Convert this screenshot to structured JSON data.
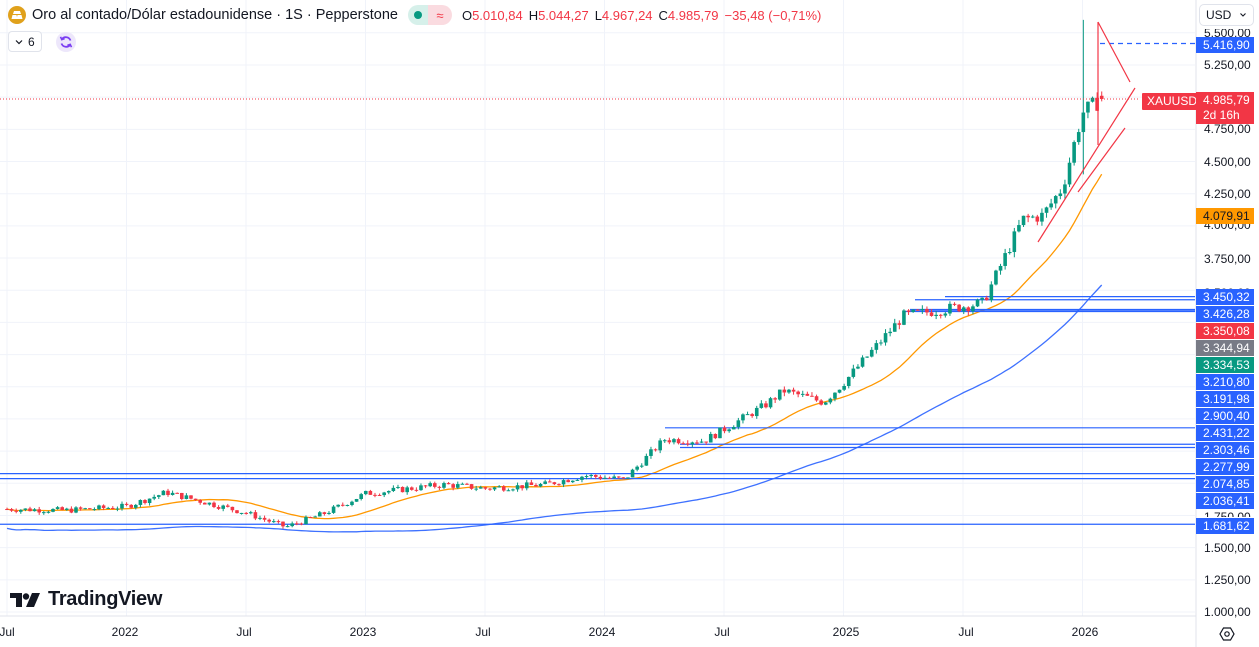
{
  "header": {
    "symbol_icon": "gold-bar-icon",
    "title": "Oro al contado/Dólar estadounidense · 1S · Pepperstone",
    "market_status_icon": "market-open-dot-icon",
    "delay_icon": "approx-icon",
    "ohlc": {
      "o_label": "O",
      "o_value": "5.010,84",
      "h_label": "H",
      "h_value": "5.044,27",
      "l_label": "L",
      "l_value": "4.967,24",
      "c_label": "C",
      "c_value": "4.985,79",
      "change": "−35,48 (−0,71%)"
    },
    "indicators_count": "6",
    "refresh_icon": "refresh-icon"
  },
  "currency": {
    "selected": "USD"
  },
  "price_axis": {
    "ticks": [
      "5.250,00",
      "4.750,00",
      "4.500,00",
      "4.250,00",
      "3.750,00",
      "1.500,00",
      "1.250,00",
      "1.000,00"
    ],
    "partially_hidden_ticks": [
      "5.500,00",
      "4.000,00",
      "3.500,00",
      "1.750,00"
    ]
  },
  "price_tags": [
    {
      "value": "5.416,90",
      "color": "#2962ff"
    },
    {
      "value": "4.079,91",
      "color": "#ff9800"
    },
    {
      "value": "3.450,32",
      "color": "#2962ff"
    },
    {
      "value": "3.426,28",
      "color": "#2962ff"
    },
    {
      "value": "3.350,08",
      "color": "#f23645"
    },
    {
      "value": "3.344,94",
      "color": "#787b86"
    },
    {
      "value": "3.334,53",
      "color": "#089981"
    },
    {
      "value": "3.210,80",
      "color": "#2962ff"
    },
    {
      "value": "3.191,98",
      "color": "#2962ff"
    },
    {
      "value": "2.900,40",
      "color": "#2962ff"
    },
    {
      "value": "2.431,22",
      "color": "#2962ff"
    },
    {
      "value": "2.303,46",
      "color": "#2962ff"
    },
    {
      "value": "2.277,99",
      "color": "#2962ff"
    },
    {
      "value": "2.074,85",
      "color": "#2962ff"
    },
    {
      "value": "2.036,41",
      "color": "#2962ff"
    },
    {
      "value": "1.681,62",
      "color": "#2962ff"
    }
  ],
  "last_price": {
    "symbol": "XAUUSD",
    "value": "4.985,79",
    "countdown": "2d 16h",
    "color": "#f23645"
  },
  "time_axis": {
    "labels": [
      "Jul",
      "2022",
      "Jul",
      "2023",
      "Jul",
      "2024",
      "Jul",
      "2025",
      "Jul",
      "2026"
    ]
  },
  "branding": {
    "logo_text": "TradingView"
  },
  "colors": {
    "up": "#089981",
    "down": "#f23645",
    "ma_fast": "#ff9800",
    "ma_slow": "#2962ff",
    "hline": "#2962ff",
    "trendline": "#f23645"
  },
  "chart_data": {
    "type": "candlestick",
    "title": "Oro al contado/Dólar estadounidense · 1S · Pepperstone",
    "symbol": "XAUUSD",
    "interval": "1W",
    "xlabel": "",
    "ylabel": "USD",
    "ylim": [
      1000,
      5500
    ],
    "x_ticks": [
      "Jul 2021",
      "2022",
      "Jul 2022",
      "2023",
      "Jul 2023",
      "2024",
      "Jul 2024",
      "2025",
      "Jul 2025",
      "2026"
    ],
    "y_ticks": [
      1000,
      1250,
      1500,
      1750,
      2000,
      2250,
      2500,
      2750,
      3000,
      3250,
      3500,
      3750,
      4000,
      4250,
      4500,
      4750,
      5000,
      5250,
      5500
    ],
    "grid": true,
    "last_bar": {
      "open": 5010.84,
      "high": 5044.27,
      "low": 4967.24,
      "close": 4985.79,
      "change": -35.48,
      "change_pct": -0.71
    },
    "price_path_approx": {
      "dates": [
        "2021-07",
        "2021-10",
        "2022-01",
        "2022-03",
        "2022-07",
        "2022-09",
        "2022-11",
        "2023-01",
        "2023-05",
        "2023-07",
        "2023-10",
        "2023-12",
        "2024-02",
        "2024-04",
        "2024-06",
        "2024-09",
        "2024-10",
        "2024-12",
        "2025-01",
        "2025-04",
        "2025-06",
        "2025-08",
        "2025-10",
        "2025-11",
        "2025-12",
        "2026-01",
        "2026-02"
      ],
      "close": [
        1800,
        1790,
        1820,
        1930,
        1770,
        1660,
        1770,
        1920,
        1990,
        1960,
        1990,
        2060,
        2030,
        2340,
        2330,
        2600,
        2720,
        2630,
        2780,
        3300,
        3350,
        3400,
        4050,
        4080,
        4300,
        4880,
        4985.79
      ]
    },
    "series": [
      {
        "name": "MA fast (orange)",
        "color": "#ff9800",
        "current_value": 4079.91
      },
      {
        "name": "MA slow (blue)",
        "color": "#2962ff",
        "end_value_approx": 3270
      }
    ],
    "horizontal_levels": [
      5416.9,
      3450.32,
      3426.28,
      3350.08,
      3344.94,
      3334.53,
      2431.22,
      2303.46,
      2277.99,
      2074.85,
      2036.41,
      1681.62
    ],
    "annotations": [
      "XAUUSD last price 4.985,79 (2d 16h)",
      "Ascending trendlines from Oct 2025 lows",
      "Pullback from all-time high ~5.600 in Jan 2026"
    ]
  }
}
